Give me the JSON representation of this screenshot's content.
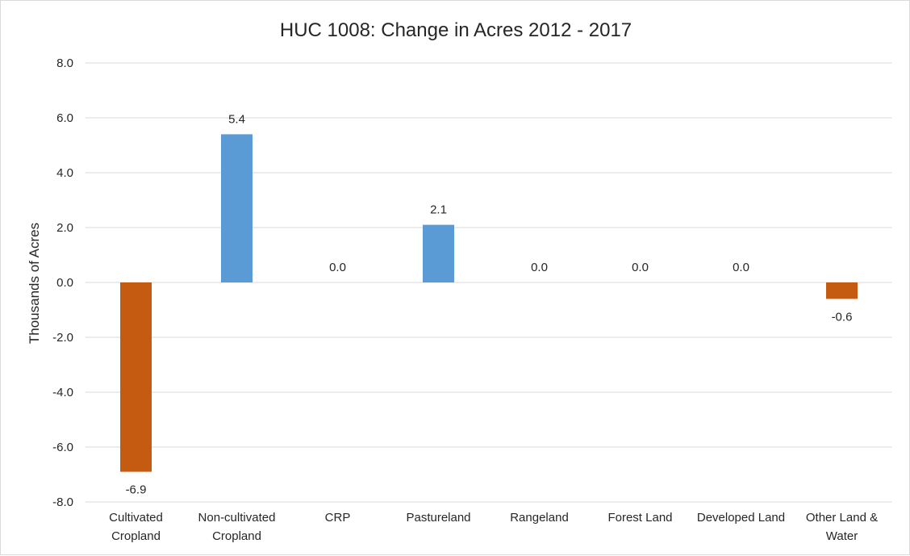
{
  "chart_data": {
    "type": "bar",
    "title": "HUC 1008: Change in Acres 2012 - 2017",
    "xlabel": "",
    "ylabel": "Thousands of Acres",
    "ylim": [
      -8,
      8
    ],
    "yticks": [
      8,
      6,
      4,
      2,
      0,
      -2,
      -4,
      -6,
      -8
    ],
    "ytick_labels": [
      "8.0",
      "6.0",
      "4.0",
      "2.0",
      "0.0",
      "-2.0",
      "-4.0",
      "-6.0",
      "-8.0"
    ],
    "grid": true,
    "legend": "none",
    "categories": [
      [
        "Cultivated",
        "Cropland"
      ],
      [
        "Non-cultivated",
        "Cropland"
      ],
      [
        "CRP"
      ],
      [
        "Pastureland"
      ],
      [
        "Rangeland"
      ],
      [
        "Forest Land"
      ],
      [
        "Developed Land"
      ],
      [
        "Other Land &",
        "Water"
      ]
    ],
    "values": [
      -6.9,
      5.4,
      0.0,
      2.1,
      0.0,
      0.0,
      0.0,
      -0.6
    ],
    "data_labels": [
      "-6.9",
      "5.4",
      "0.0",
      "2.1",
      "0.0",
      "0.0",
      "0.0",
      "-0.6"
    ],
    "colors": {
      "positive": "#5b9bd5",
      "negative": "#c55a11"
    }
  }
}
